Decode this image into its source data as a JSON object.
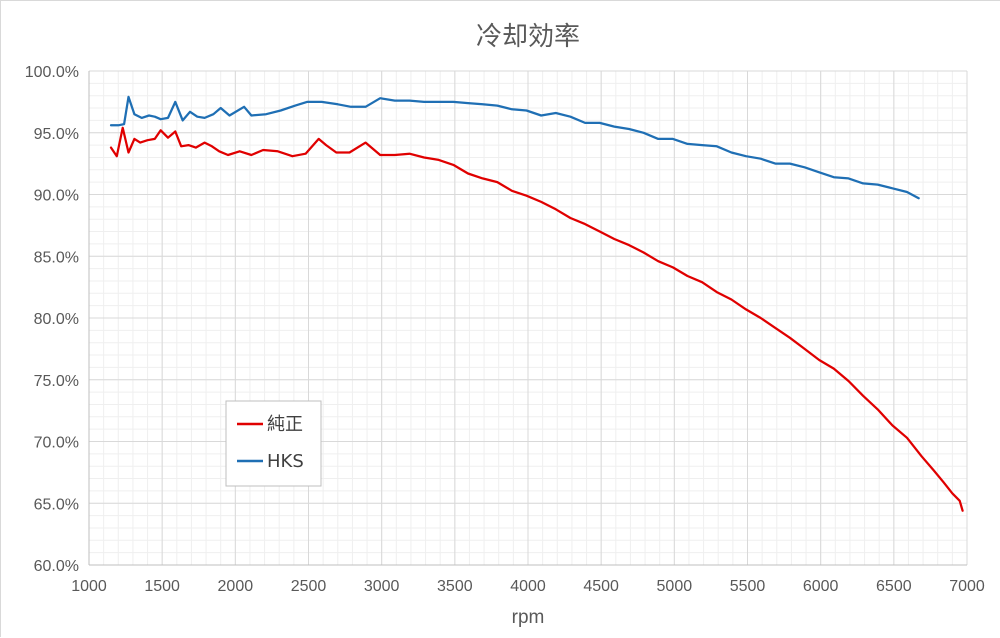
{
  "chart_data": {
    "type": "line",
    "title": "冷却効率",
    "xlabel": "rpm",
    "ylabel": "",
    "xlim": [
      1000,
      7000
    ],
    "ylim": [
      60,
      100
    ],
    "x_ticks": [
      1000,
      1500,
      2000,
      2500,
      3000,
      3500,
      4000,
      4500,
      5000,
      5500,
      6000,
      6500,
      7000
    ],
    "y_ticks": [
      60,
      65,
      70,
      75,
      80,
      85,
      90,
      95,
      100
    ],
    "y_tick_labels": [
      "60.0%",
      "65.0%",
      "70.0%",
      "75.0%",
      "80.0%",
      "85.0%",
      "90.0%",
      "95.0%",
      "100.0%"
    ],
    "grid": true,
    "legend_position": "lower-left inside",
    "series": [
      {
        "name": "純正",
        "color": "#e00000",
        "points": [
          [
            1150,
            93.8
          ],
          [
            1190,
            93.1
          ],
          [
            1230,
            95.4
          ],
          [
            1270,
            93.4
          ],
          [
            1310,
            94.5
          ],
          [
            1350,
            94.2
          ],
          [
            1400,
            94.4
          ],
          [
            1450,
            94.5
          ],
          [
            1490,
            95.2
          ],
          [
            1540,
            94.6
          ],
          [
            1590,
            95.1
          ],
          [
            1630,
            93.9
          ],
          [
            1680,
            94.0
          ],
          [
            1730,
            93.8
          ],
          [
            1790,
            94.2
          ],
          [
            1840,
            93.9
          ],
          [
            1890,
            93.5
          ],
          [
            1950,
            93.2
          ],
          [
            2030,
            93.5
          ],
          [
            2110,
            93.2
          ],
          [
            2190,
            93.6
          ],
          [
            2290,
            93.5
          ],
          [
            2390,
            93.1
          ],
          [
            2480,
            93.3
          ],
          [
            2570,
            94.5
          ],
          [
            2620,
            94.0
          ],
          [
            2690,
            93.4
          ],
          [
            2780,
            93.4
          ],
          [
            2890,
            94.2
          ],
          [
            2990,
            93.2
          ],
          [
            3090,
            93.2
          ],
          [
            3190,
            93.3
          ],
          [
            3290,
            93.0
          ],
          [
            3390,
            92.8
          ],
          [
            3490,
            92.4
          ],
          [
            3590,
            91.7
          ],
          [
            3690,
            91.3
          ],
          [
            3790,
            91.0
          ],
          [
            3890,
            90.3
          ],
          [
            3990,
            89.9
          ],
          [
            4090,
            89.4
          ],
          [
            4190,
            88.8
          ],
          [
            4290,
            88.1
          ],
          [
            4390,
            87.6
          ],
          [
            4490,
            87.0
          ],
          [
            4590,
            86.4
          ],
          [
            4690,
            85.9
          ],
          [
            4790,
            85.3
          ],
          [
            4890,
            84.6
          ],
          [
            4990,
            84.1
          ],
          [
            5090,
            83.4
          ],
          [
            5190,
            82.9
          ],
          [
            5290,
            82.1
          ],
          [
            5390,
            81.5
          ],
          [
            5490,
            80.7
          ],
          [
            5590,
            80.0
          ],
          [
            5690,
            79.2
          ],
          [
            5790,
            78.4
          ],
          [
            5890,
            77.5
          ],
          [
            5990,
            76.6
          ],
          [
            6090,
            75.9
          ],
          [
            6190,
            74.9
          ],
          [
            6290,
            73.7
          ],
          [
            6390,
            72.6
          ],
          [
            6490,
            71.3
          ],
          [
            6590,
            70.3
          ],
          [
            6690,
            68.8
          ],
          [
            6770,
            67.7
          ],
          [
            6840,
            66.7
          ],
          [
            6900,
            65.8
          ],
          [
            6950,
            65.2
          ],
          [
            6970,
            64.4
          ]
        ]
      },
      {
        "name": "HKS",
        "color": "#1f6fb4",
        "points": [
          [
            1150,
            95.6
          ],
          [
            1200,
            95.6
          ],
          [
            1240,
            95.7
          ],
          [
            1270,
            97.9
          ],
          [
            1310,
            96.5
          ],
          [
            1360,
            96.2
          ],
          [
            1410,
            96.4
          ],
          [
            1450,
            96.3
          ],
          [
            1490,
            96.1
          ],
          [
            1540,
            96.2
          ],
          [
            1590,
            97.5
          ],
          [
            1640,
            96.0
          ],
          [
            1690,
            96.7
          ],
          [
            1740,
            96.3
          ],
          [
            1790,
            96.2
          ],
          [
            1850,
            96.5
          ],
          [
            1900,
            97.0
          ],
          [
            1960,
            96.4
          ],
          [
            2060,
            97.1
          ],
          [
            2110,
            96.4
          ],
          [
            2210,
            96.5
          ],
          [
            2310,
            96.8
          ],
          [
            2410,
            97.2
          ],
          [
            2490,
            97.5
          ],
          [
            2590,
            97.5
          ],
          [
            2700,
            97.3
          ],
          [
            2790,
            97.1
          ],
          [
            2890,
            97.1
          ],
          [
            2990,
            97.8
          ],
          [
            3090,
            97.6
          ],
          [
            3190,
            97.6
          ],
          [
            3290,
            97.5
          ],
          [
            3390,
            97.5
          ],
          [
            3490,
            97.5
          ],
          [
            3590,
            97.4
          ],
          [
            3690,
            97.3
          ],
          [
            3790,
            97.2
          ],
          [
            3890,
            96.9
          ],
          [
            3990,
            96.8
          ],
          [
            4090,
            96.4
          ],
          [
            4190,
            96.6
          ],
          [
            4290,
            96.3
          ],
          [
            4390,
            95.8
          ],
          [
            4490,
            95.8
          ],
          [
            4590,
            95.5
          ],
          [
            4690,
            95.3
          ],
          [
            4790,
            95.0
          ],
          [
            4890,
            94.5
          ],
          [
            4990,
            94.5
          ],
          [
            5090,
            94.1
          ],
          [
            5190,
            94.0
          ],
          [
            5290,
            93.9
          ],
          [
            5390,
            93.4
          ],
          [
            5490,
            93.1
          ],
          [
            5590,
            92.9
          ],
          [
            5690,
            92.5
          ],
          [
            5790,
            92.5
          ],
          [
            5890,
            92.2
          ],
          [
            5990,
            91.8
          ],
          [
            6090,
            91.4
          ],
          [
            6190,
            91.3
          ],
          [
            6290,
            90.9
          ],
          [
            6390,
            90.8
          ],
          [
            6490,
            90.5
          ],
          [
            6590,
            90.2
          ],
          [
            6670,
            89.7
          ]
        ]
      }
    ]
  }
}
